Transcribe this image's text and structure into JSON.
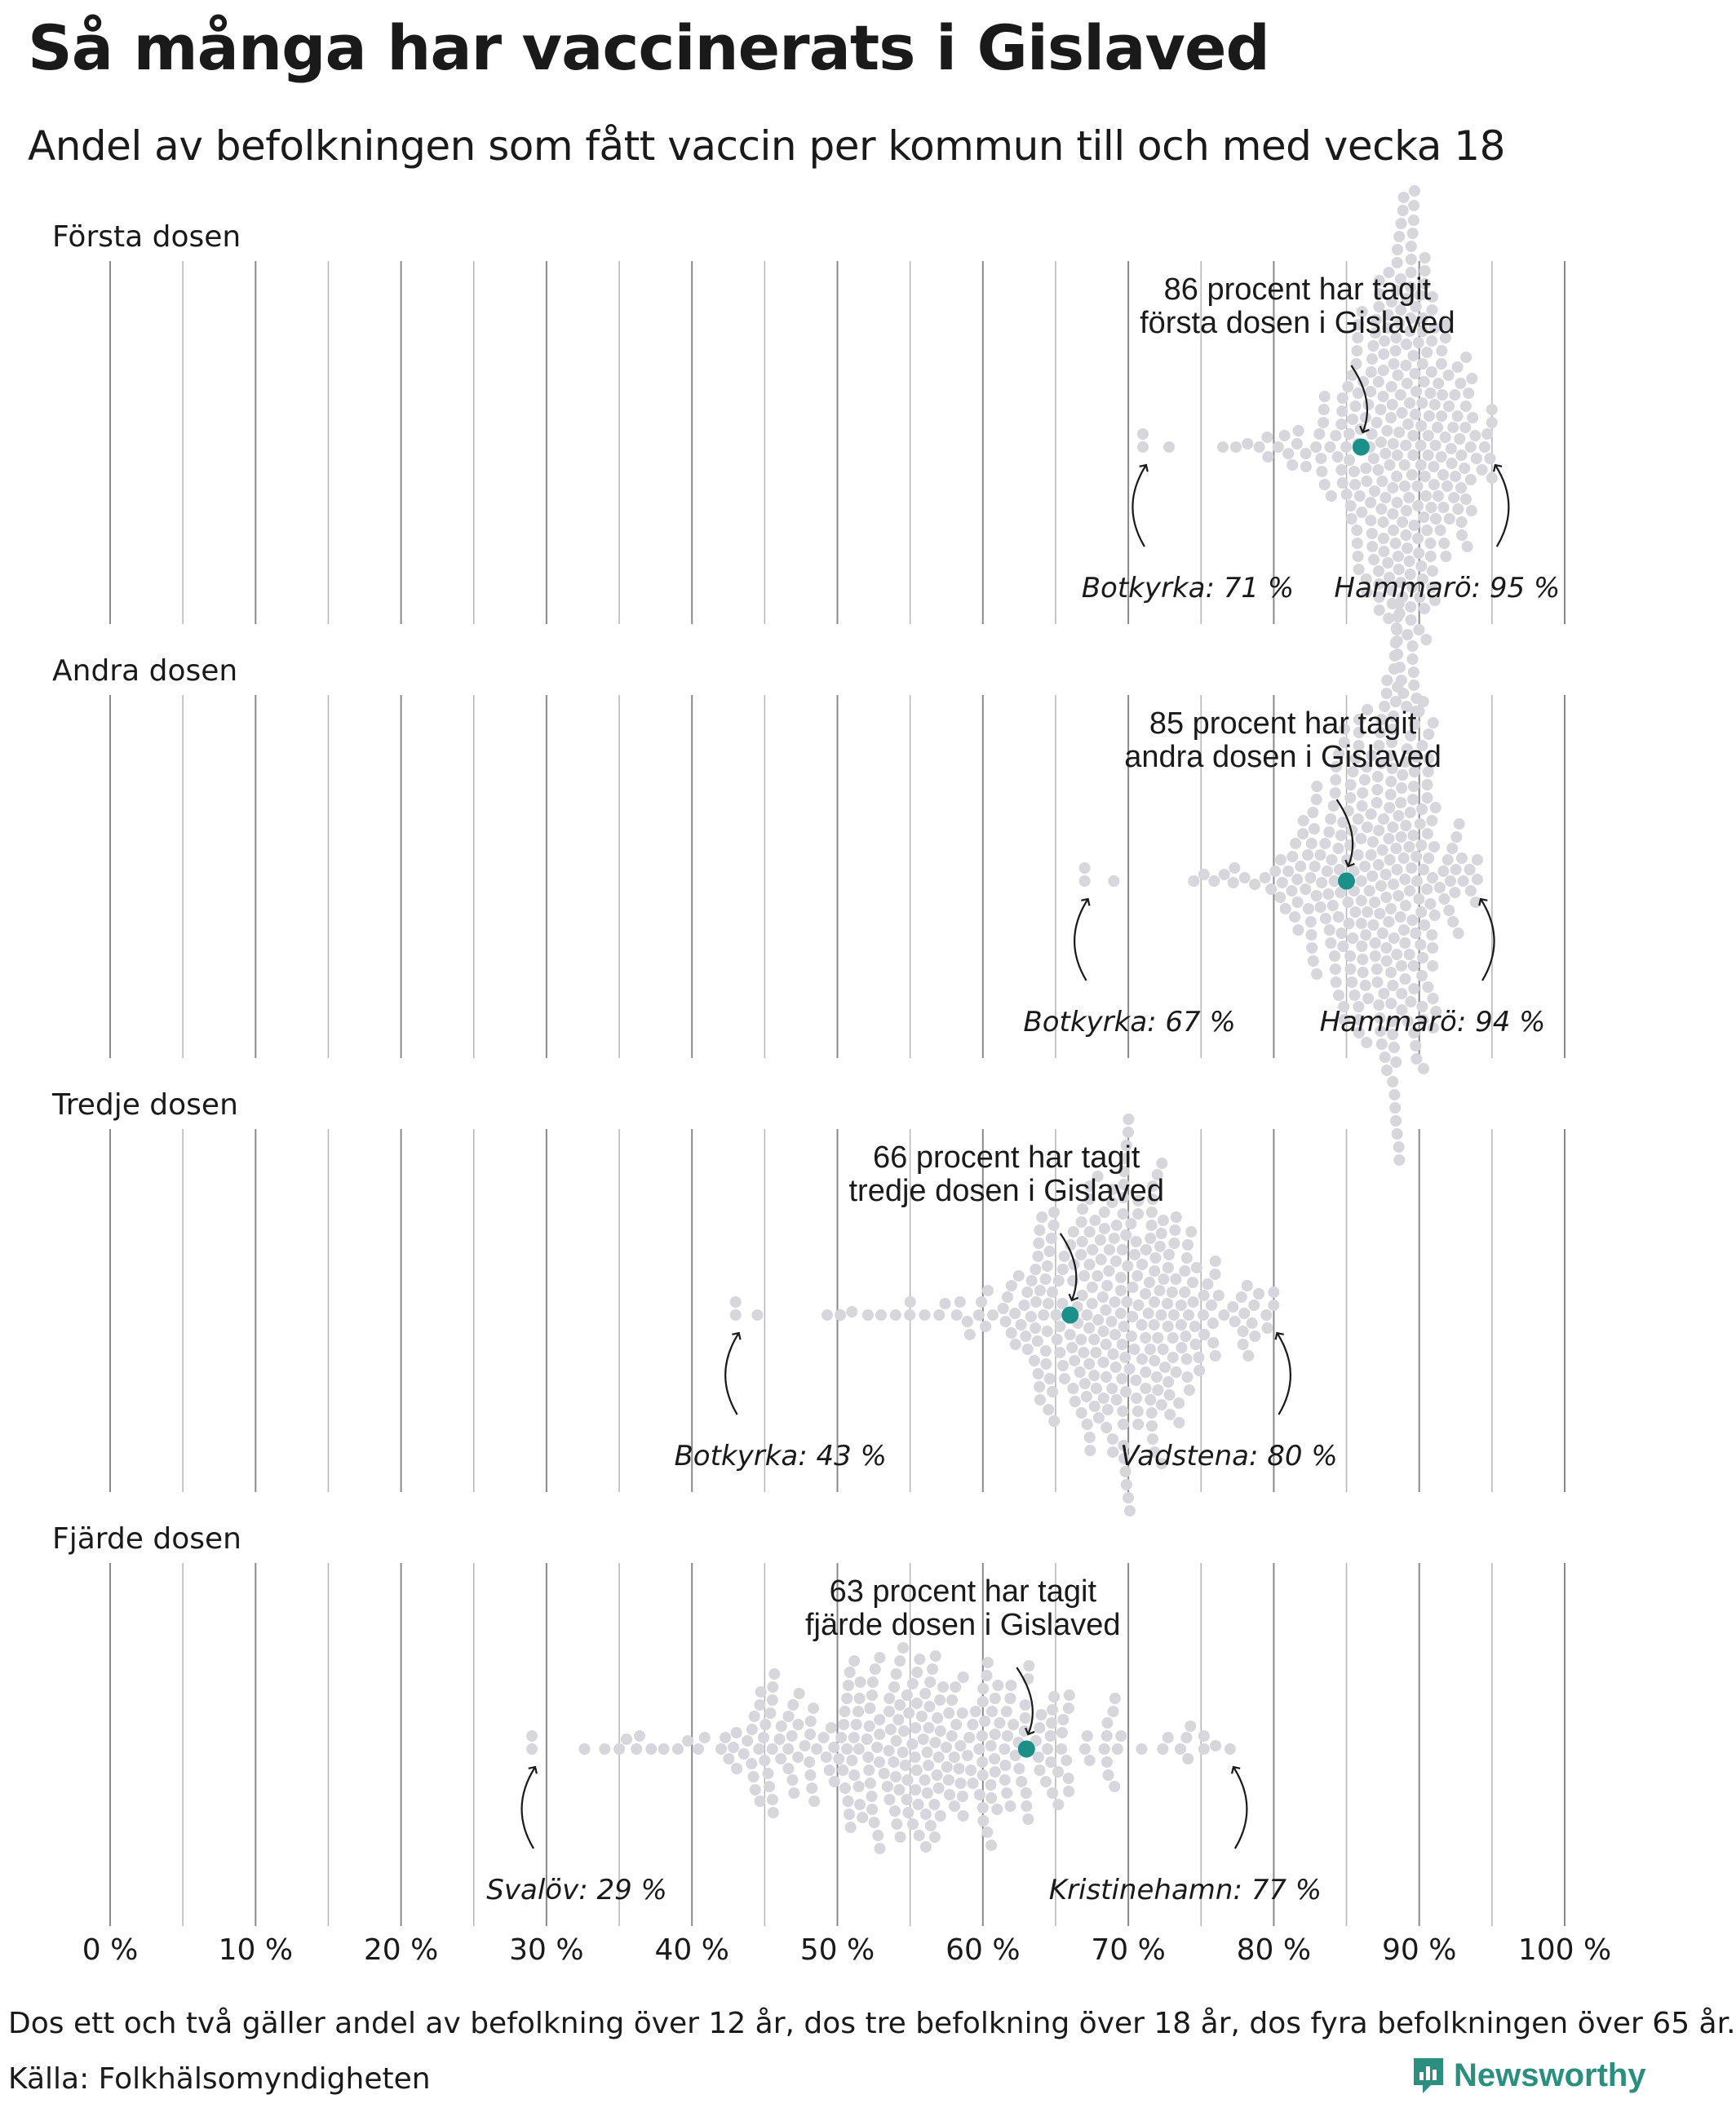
{
  "title": "Så många har vaccinerats i Gislaved",
  "subtitle": "Andel av befolkningen som fått vaccin per kommun till och med vecka 18",
  "footnote": "Dos ett och två gäller andel av befolkning över 12 år, dos tre befolkning över 18 år, dos fyra befolkningen över 65 år.",
  "source": "Källa: Folkhälsomyndigheten",
  "brand": "Newsworthy",
  "colors": {
    "highlight": "#1a9088",
    "dots": "#d6d6dc",
    "grid": "#999999",
    "text": "#1a1a1a"
  },
  "chart_data": {
    "type": "scatter",
    "subtype": "beeswarm",
    "xlim": [
      0,
      100
    ],
    "xticks": [
      0,
      10,
      20,
      30,
      40,
      50,
      60,
      70,
      80,
      90,
      100
    ],
    "xtick_labels": [
      "0 %",
      "10 %",
      "20 %",
      "30 %",
      "40 %",
      "50 %",
      "60 %",
      "70 %",
      "80 %",
      "90 %",
      "100 %"
    ],
    "grid": true,
    "panels": [
      {
        "name": "Första dosen",
        "highlight": {
          "kommun": "Gislaved",
          "value": 86,
          "label_line1": "86 procent har tagit",
          "label_line2": "första dosen i Gislaved"
        },
        "min": {
          "kommun": "Botkyrka",
          "value": 71,
          "label": "Botkyrka: 71 %"
        },
        "max": {
          "kommun": "Hammarö",
          "value": 95,
          "label": "Hammarö: 95 %"
        },
        "distribution": {
          "center": 89,
          "spread": 2.7,
          "count": 290,
          "outliers": [
            71,
            72.8,
            76.5,
            77.4,
            78.2,
            79,
            79.6,
            80.3,
            81,
            81.6,
            82.2,
            82.9,
            83.5
          ]
        }
      },
      {
        "name": "Andra dosen",
        "highlight": {
          "kommun": "Gislaved",
          "value": 85,
          "label_line1": "85 procent har tagit",
          "label_line2": "andra dosen i Gislaved"
        },
        "min": {
          "kommun": "Botkyrka",
          "value": 67,
          "label": "Botkyrka: 67 %"
        },
        "max": {
          "kommun": "Hammarö",
          "value": 94,
          "label": "Hammarö: 94 %"
        },
        "distribution": {
          "center": 87.5,
          "spread": 2.9,
          "count": 290,
          "outliers": [
            67,
            69,
            74.5,
            75.2,
            75.9,
            76.6,
            77.3,
            78,
            78.7,
            79.4,
            80.1,
            80.8,
            81.5
          ]
        }
      },
      {
        "name": "Tredje dosen",
        "highlight": {
          "kommun": "Gislaved",
          "value": 66,
          "label_line1": "66 procent har tagit",
          "label_line2": "tredje dosen i Gislaved"
        },
        "min": {
          "kommun": "Botkyrka",
          "value": 43,
          "label": "Botkyrka: 43 %"
        },
        "max": {
          "kommun": "Vadstena",
          "value": 80,
          "label": "Vadstena: 80 %"
        },
        "distribution": {
          "center": 69.5,
          "spread": 4.5,
          "count": 290,
          "outliers": [
            43,
            44.5,
            49.3,
            50.2,
            51,
            52.1,
            53,
            54,
            55,
            56,
            57,
            58.2,
            59.1
          ]
        }
      },
      {
        "name": "Fjärde dosen",
        "highlight": {
          "kommun": "Gislaved",
          "value": 63,
          "label_line1": "63 procent har tagit",
          "label_line2": "fjärde dosen i Gislaved"
        },
        "min": {
          "kommun": "Svalöv",
          "value": 29,
          "label": "Svalöv: 29 %"
        },
        "max": {
          "kommun": "Kristinehamn",
          "value": 77,
          "label": "Kristinehamn: 77 %"
        },
        "distribution": {
          "center": 55.5,
          "spread": 8,
          "count": 290,
          "outliers": [
            29,
            34,
            35.5,
            36.4,
            37.2,
            74,
            75.2,
            76
          ]
        }
      }
    ]
  }
}
